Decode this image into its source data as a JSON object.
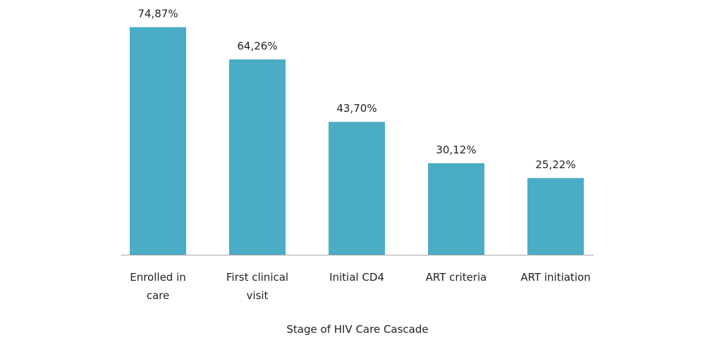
{
  "chart_data": {
    "type": "bar",
    "categories": [
      "Enrolled in care",
      "First clinical visit",
      "Initial CD4",
      "ART criteria",
      "ART initiation"
    ],
    "category_lines": [
      [
        "Enrolled in",
        "care"
      ],
      [
        "First clinical",
        "visit"
      ],
      [
        "Initial CD4"
      ],
      [
        "ART criteria"
      ],
      [
        "ART initiation"
      ]
    ],
    "values": [
      74.87,
      64.26,
      43.7,
      30.12,
      25.22
    ],
    "value_labels": [
      "74,87%",
      "64,26%",
      "43,70%",
      "30,12%",
      "25,22%"
    ],
    "xlabel": "Stage of HIV Care Cascade",
    "ylabel": "",
    "ylim": [
      0,
      75
    ],
    "grid": false,
    "legend": "none",
    "bar_color": "#4BACC6",
    "axis_color": "#A6A6A6"
  }
}
